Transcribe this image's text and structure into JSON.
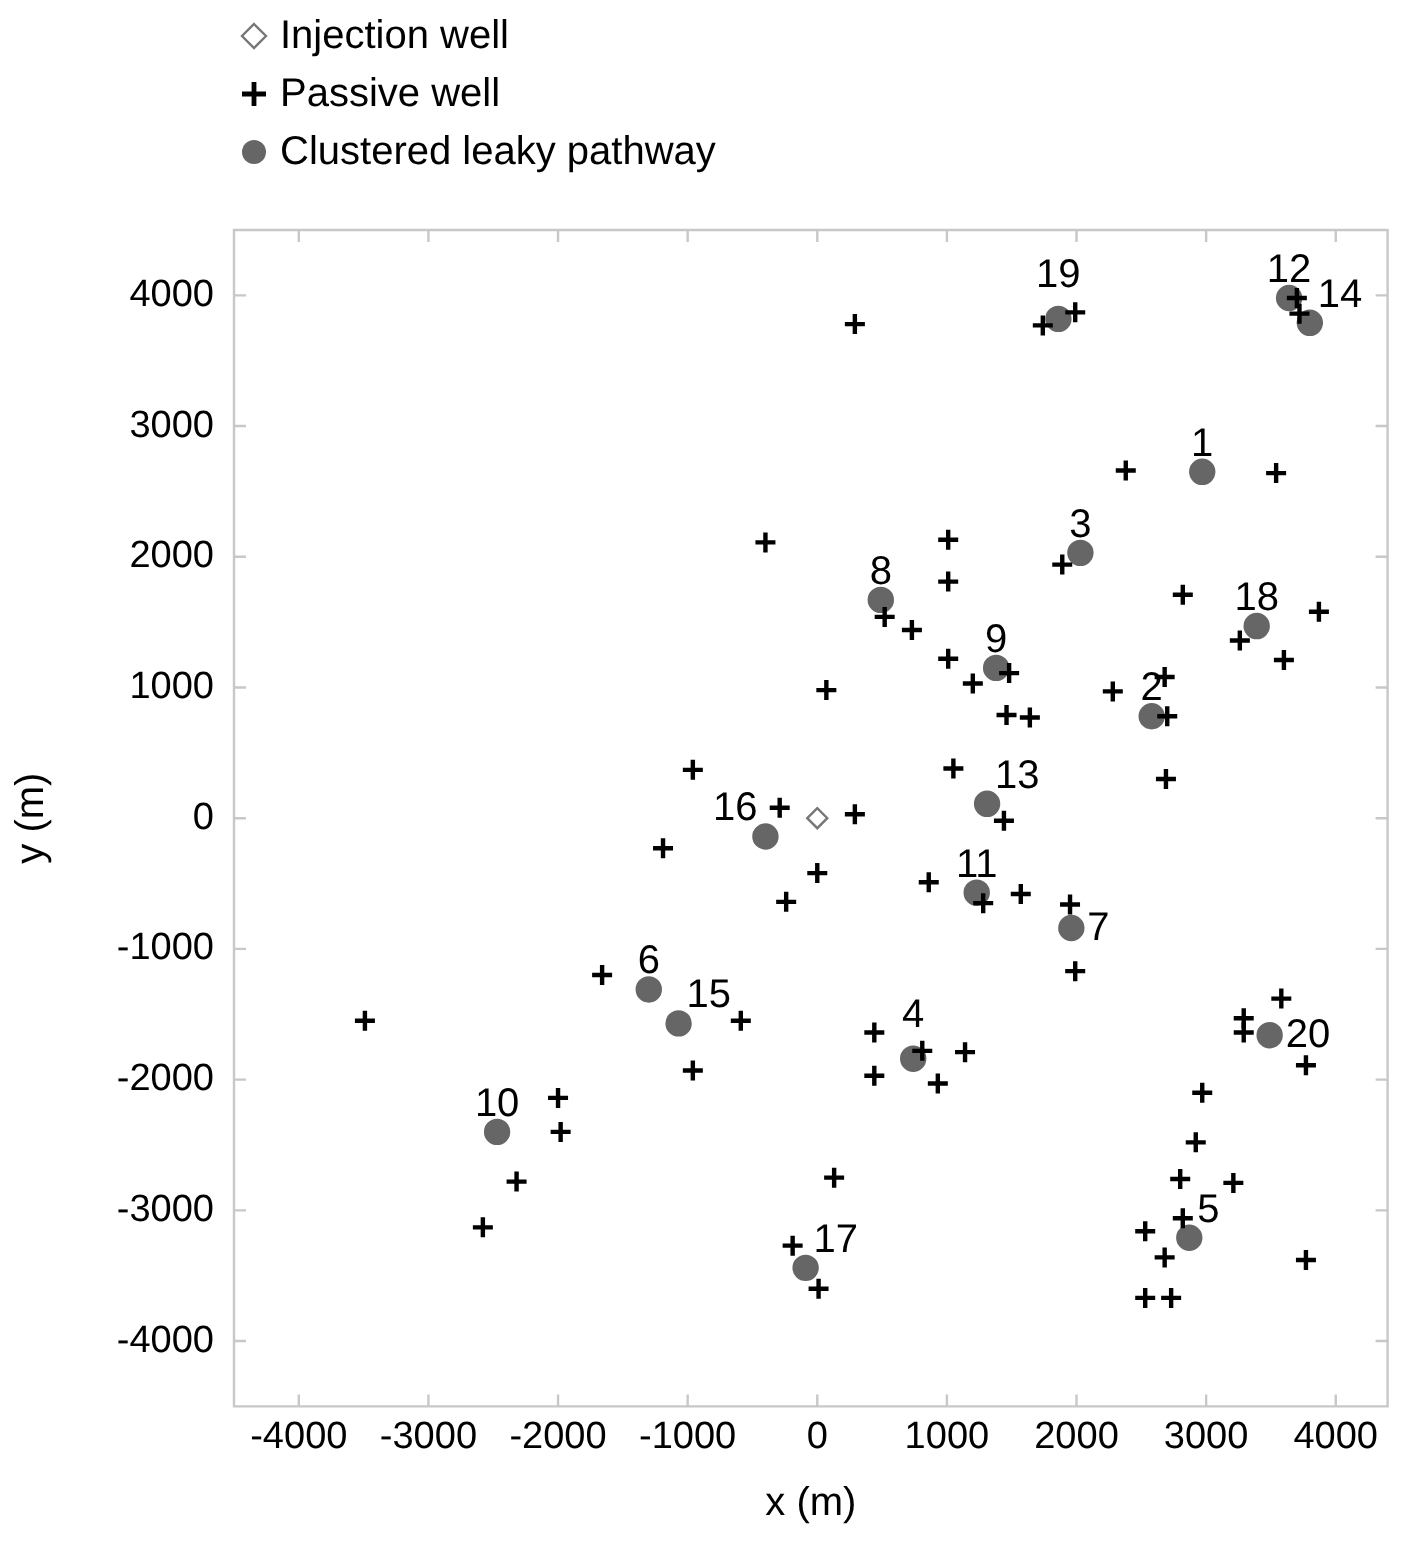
{
  "chart_data": {
    "type": "scatter",
    "xlabel": "x (m)",
    "ylabel": "y (m)",
    "legend": "top left",
    "grid": false,
    "xlim": [
      -4500,
      4400
    ],
    "ylim": [
      -4500,
      4500
    ],
    "xticks": [
      -4000,
      -3000,
      -2000,
      -1000,
      0,
      1000,
      2000,
      3000,
      4000
    ],
    "yticks": [
      -4000,
      -3000,
      -2000,
      -1000,
      0,
      1000,
      2000,
      3000,
      4000
    ],
    "series": [
      {
        "name": "Injection well",
        "marker": "diamond",
        "color": "#777777",
        "x": [
          0
        ],
        "values": [
          0
        ]
      },
      {
        "name": "Passive well",
        "marker": "cross",
        "color": "#000000",
        "x": [
          -400,
          -960,
          -1190,
          -290,
          -240,
          0,
          -1660,
          -590,
          -3490,
          -960,
          -2000,
          -1980,
          -2320,
          -2580,
          -190,
          10,
          290,
          860,
          1280,
          1570,
          1950,
          1990,
          1440,
          1050,
          440,
          440,
          810,
          1140,
          930,
          130,
          3290,
          3290,
          3580,
          3770,
          2970,
          2920,
          3210,
          2800,
          2820,
          2530,
          2680,
          2530,
          2730,
          3770,
          290,
          1740,
          1990,
          3700,
          3720,
          2380,
          3540,
          1010,
          1010,
          1890,
          520,
          730,
          1010,
          1480,
          1200,
          70,
          1460,
          1640,
          2820,
          3260,
          3870,
          3600,
          2280,
          2680,
          2700,
          2690
        ],
        "values": [
          2110,
          370,
          -230,
          80,
          -640,
          -420,
          -1200,
          -1550,
          -1550,
          -1930,
          -2140,
          -2400,
          -2780,
          -3130,
          -3270,
          -3600,
          30,
          -490,
          -650,
          -580,
          -660,
          -1170,
          -20,
          380,
          -1640,
          -1970,
          -1780,
          -1790,
          -2030,
          -2750,
          -1530,
          -1640,
          -1380,
          -1890,
          -2100,
          -2480,
          -2790,
          -2760,
          -3060,
          -3160,
          -3360,
          -3670,
          -3670,
          -3380,
          3780,
          3770,
          3870,
          3980,
          3860,
          2660,
          2640,
          2130,
          1810,
          1940,
          1540,
          1440,
          1220,
          1110,
          1030,
          980,
          790,
          770,
          1710,
          1360,
          1580,
          1210,
          970,
          1080,
          780,
          300
        ]
      },
      {
        "name": "Clustered leaky pathway",
        "marker": "circle",
        "color": "#666666",
        "x": [
          2970,
          2580,
          2030,
          740,
          2870,
          -1300,
          1960,
          490,
          1380,
          -2470,
          1230,
          3640,
          1310,
          3800,
          -1070,
          -400,
          -90,
          3390,
          1860,
          3490
        ],
        "values": [
          2650,
          780,
          2030,
          -1840,
          -3210,
          -1310,
          -840,
          1670,
          1150,
          -2400,
          -570,
          3980,
          110,
          3790,
          -1570,
          -140,
          -3440,
          1470,
          3820,
          -1660
        ]
      }
    ],
    "annotations": [
      {
        "text": "1",
        "x": 2970,
        "y": 2650
      },
      {
        "text": "2",
        "x": 2580,
        "y": 780
      },
      {
        "text": "3",
        "x": 2030,
        "y": 2030
      },
      {
        "text": "4",
        "x": 740,
        "y": -1840
      },
      {
        "text": "5",
        "x": 2870,
        "y": -3210
      },
      {
        "text": "6",
        "x": -1300,
        "y": -1310
      },
      {
        "text": "7",
        "x": 1960,
        "y": -840
      },
      {
        "text": "8",
        "x": 490,
        "y": 1670
      },
      {
        "text": "9",
        "x": 1380,
        "y": 1150
      },
      {
        "text": "10",
        "x": -2470,
        "y": -2400
      },
      {
        "text": "11",
        "x": 1230,
        "y": -570
      },
      {
        "text": "12",
        "x": 3640,
        "y": 3980
      },
      {
        "text": "13",
        "x": 1310,
        "y": 110
      },
      {
        "text": "14",
        "x": 3800,
        "y": 3790
      },
      {
        "text": "15",
        "x": -1070,
        "y": -1570
      },
      {
        "text": "16",
        "x": -400,
        "y": -140
      },
      {
        "text": "17",
        "x": -90,
        "y": -3440
      },
      {
        "text": "18",
        "x": 3390,
        "y": 1470
      },
      {
        "text": "19",
        "x": 1860,
        "y": 3820
      },
      {
        "text": "20",
        "x": 3490,
        "y": -1660
      }
    ]
  }
}
